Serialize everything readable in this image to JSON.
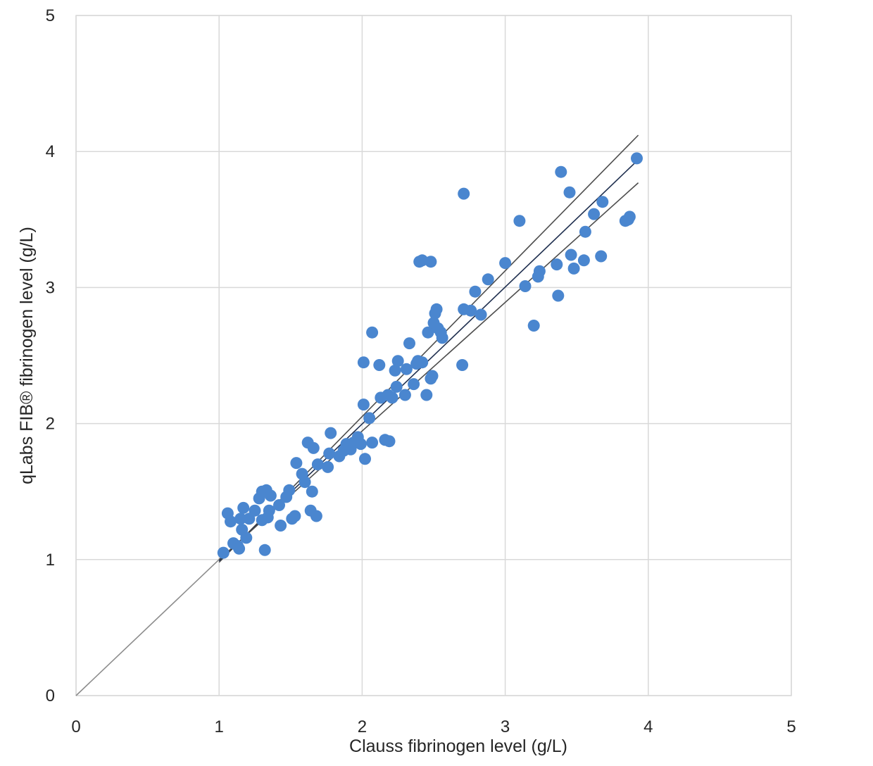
{
  "chart_data": {
    "type": "scatter",
    "xlabel": "Clauss fibrinogen level (g/L)",
    "ylabel": "qLabs FIB® fibrinogen level (g/L)",
    "xlim": [
      0,
      5
    ],
    "ylim": [
      0,
      5
    ],
    "xticks": [
      "0",
      "1",
      "2",
      "3",
      "4",
      "5"
    ],
    "yticks": [
      "0",
      "1",
      "2",
      "3",
      "4",
      "5"
    ],
    "grid": true,
    "colors": {
      "points": "#4a86cf",
      "identity_line": "#8c8c8c",
      "fit_line": "#1f2f4f",
      "ci_line": "#4d4d4d"
    },
    "lines": [
      {
        "role": "identity",
        "x": [
          0,
          1.05
        ],
        "y": [
          0,
          1.05
        ]
      },
      {
        "role": "upper-ci",
        "x": [
          1.0,
          3.93
        ],
        "y": [
          0.98,
          4.12
        ]
      },
      {
        "role": "fit",
        "x": [
          1.0,
          3.93
        ],
        "y": [
          0.99,
          3.94
        ]
      },
      {
        "role": "lower-ci",
        "x": [
          1.0,
          3.93
        ],
        "y": [
          1.0,
          3.77
        ]
      }
    ],
    "points": [
      {
        "x": 1.03,
        "y": 1.05
      },
      {
        "x": 1.06,
        "y": 1.34
      },
      {
        "x": 1.08,
        "y": 1.28
      },
      {
        "x": 1.1,
        "y": 1.12
      },
      {
        "x": 1.13,
        "y": 1.1
      },
      {
        "x": 1.14,
        "y": 1.08
      },
      {
        "x": 1.15,
        "y": 1.3
      },
      {
        "x": 1.16,
        "y": 1.22
      },
      {
        "x": 1.17,
        "y": 1.38
      },
      {
        "x": 1.19,
        "y": 1.16
      },
      {
        "x": 1.21,
        "y": 1.3
      },
      {
        "x": 1.25,
        "y": 1.36
      },
      {
        "x": 1.28,
        "y": 1.45
      },
      {
        "x": 1.3,
        "y": 1.5
      },
      {
        "x": 1.32,
        "y": 1.07
      },
      {
        "x": 1.3,
        "y": 1.29
      },
      {
        "x": 1.33,
        "y": 1.51
      },
      {
        "x": 1.34,
        "y": 1.31
      },
      {
        "x": 1.35,
        "y": 1.36
      },
      {
        "x": 1.36,
        "y": 1.47
      },
      {
        "x": 1.42,
        "y": 1.4
      },
      {
        "x": 1.43,
        "y": 1.25
      },
      {
        "x": 1.47,
        "y": 1.46
      },
      {
        "x": 1.49,
        "y": 1.51
      },
      {
        "x": 1.51,
        "y": 1.3
      },
      {
        "x": 1.53,
        "y": 1.32
      },
      {
        "x": 1.54,
        "y": 1.71
      },
      {
        "x": 1.58,
        "y": 1.63
      },
      {
        "x": 1.6,
        "y": 1.57
      },
      {
        "x": 1.62,
        "y": 1.86
      },
      {
        "x": 1.64,
        "y": 1.36
      },
      {
        "x": 1.65,
        "y": 1.5
      },
      {
        "x": 1.66,
        "y": 1.82
      },
      {
        "x": 1.68,
        "y": 1.32
      },
      {
        "x": 1.69,
        "y": 1.7
      },
      {
        "x": 1.76,
        "y": 1.68
      },
      {
        "x": 1.77,
        "y": 1.78
      },
      {
        "x": 1.78,
        "y": 1.93
      },
      {
        "x": 1.84,
        "y": 1.76
      },
      {
        "x": 1.87,
        "y": 1.8
      },
      {
        "x": 1.89,
        "y": 1.85
      },
      {
        "x": 1.92,
        "y": 1.81
      },
      {
        "x": 1.94,
        "y": 1.86
      },
      {
        "x": 1.97,
        "y": 1.9
      },
      {
        "x": 1.99,
        "y": 1.85
      },
      {
        "x": 2.01,
        "y": 2.14
      },
      {
        "x": 2.01,
        "y": 2.45
      },
      {
        "x": 2.02,
        "y": 1.74
      },
      {
        "x": 2.05,
        "y": 2.04
      },
      {
        "x": 2.07,
        "y": 2.67
      },
      {
        "x": 2.07,
        "y": 1.86
      },
      {
        "x": 2.12,
        "y": 2.43
      },
      {
        "x": 2.13,
        "y": 2.19
      },
      {
        "x": 2.16,
        "y": 1.88
      },
      {
        "x": 2.18,
        "y": 2.21
      },
      {
        "x": 2.19,
        "y": 1.87
      },
      {
        "x": 2.21,
        "y": 2.19
      },
      {
        "x": 2.23,
        "y": 2.39
      },
      {
        "x": 2.24,
        "y": 2.27
      },
      {
        "x": 2.25,
        "y": 2.46
      },
      {
        "x": 2.3,
        "y": 2.21
      },
      {
        "x": 2.31,
        "y": 2.4
      },
      {
        "x": 2.33,
        "y": 2.59
      },
      {
        "x": 2.36,
        "y": 2.29
      },
      {
        "x": 2.38,
        "y": 2.44
      },
      {
        "x": 2.39,
        "y": 2.46
      },
      {
        "x": 2.4,
        "y": 3.19
      },
      {
        "x": 2.42,
        "y": 3.2
      },
      {
        "x": 2.42,
        "y": 2.45
      },
      {
        "x": 2.45,
        "y": 2.21
      },
      {
        "x": 2.46,
        "y": 2.67
      },
      {
        "x": 2.48,
        "y": 3.19
      },
      {
        "x": 2.48,
        "y": 2.33
      },
      {
        "x": 2.49,
        "y": 2.35
      },
      {
        "x": 2.5,
        "y": 2.74
      },
      {
        "x": 2.51,
        "y": 2.81
      },
      {
        "x": 2.52,
        "y": 2.84
      },
      {
        "x": 2.53,
        "y": 2.7
      },
      {
        "x": 2.55,
        "y": 2.67
      },
      {
        "x": 2.56,
        "y": 2.63
      },
      {
        "x": 2.7,
        "y": 2.43
      },
      {
        "x": 2.71,
        "y": 3.69
      },
      {
        "x": 2.71,
        "y": 2.84
      },
      {
        "x": 2.76,
        "y": 2.83
      },
      {
        "x": 2.79,
        "y": 2.97
      },
      {
        "x": 2.83,
        "y": 2.8
      },
      {
        "x": 2.88,
        "y": 3.06
      },
      {
        "x": 3.0,
        "y": 3.18
      },
      {
        "x": 3.1,
        "y": 3.49
      },
      {
        "x": 3.14,
        "y": 3.01
      },
      {
        "x": 3.2,
        "y": 2.72
      },
      {
        "x": 3.23,
        "y": 3.08
      },
      {
        "x": 3.24,
        "y": 3.12
      },
      {
        "x": 3.36,
        "y": 3.17
      },
      {
        "x": 3.37,
        "y": 2.94
      },
      {
        "x": 3.39,
        "y": 3.85
      },
      {
        "x": 3.45,
        "y": 3.7
      },
      {
        "x": 3.46,
        "y": 3.24
      },
      {
        "x": 3.48,
        "y": 3.14
      },
      {
        "x": 3.55,
        "y": 3.2
      },
      {
        "x": 3.56,
        "y": 3.41
      },
      {
        "x": 3.62,
        "y": 3.54
      },
      {
        "x": 3.67,
        "y": 3.23
      },
      {
        "x": 3.68,
        "y": 3.63
      },
      {
        "x": 3.84,
        "y": 3.49
      },
      {
        "x": 3.86,
        "y": 3.5
      },
      {
        "x": 3.87,
        "y": 3.52
      },
      {
        "x": 3.92,
        "y": 3.95
      }
    ]
  }
}
